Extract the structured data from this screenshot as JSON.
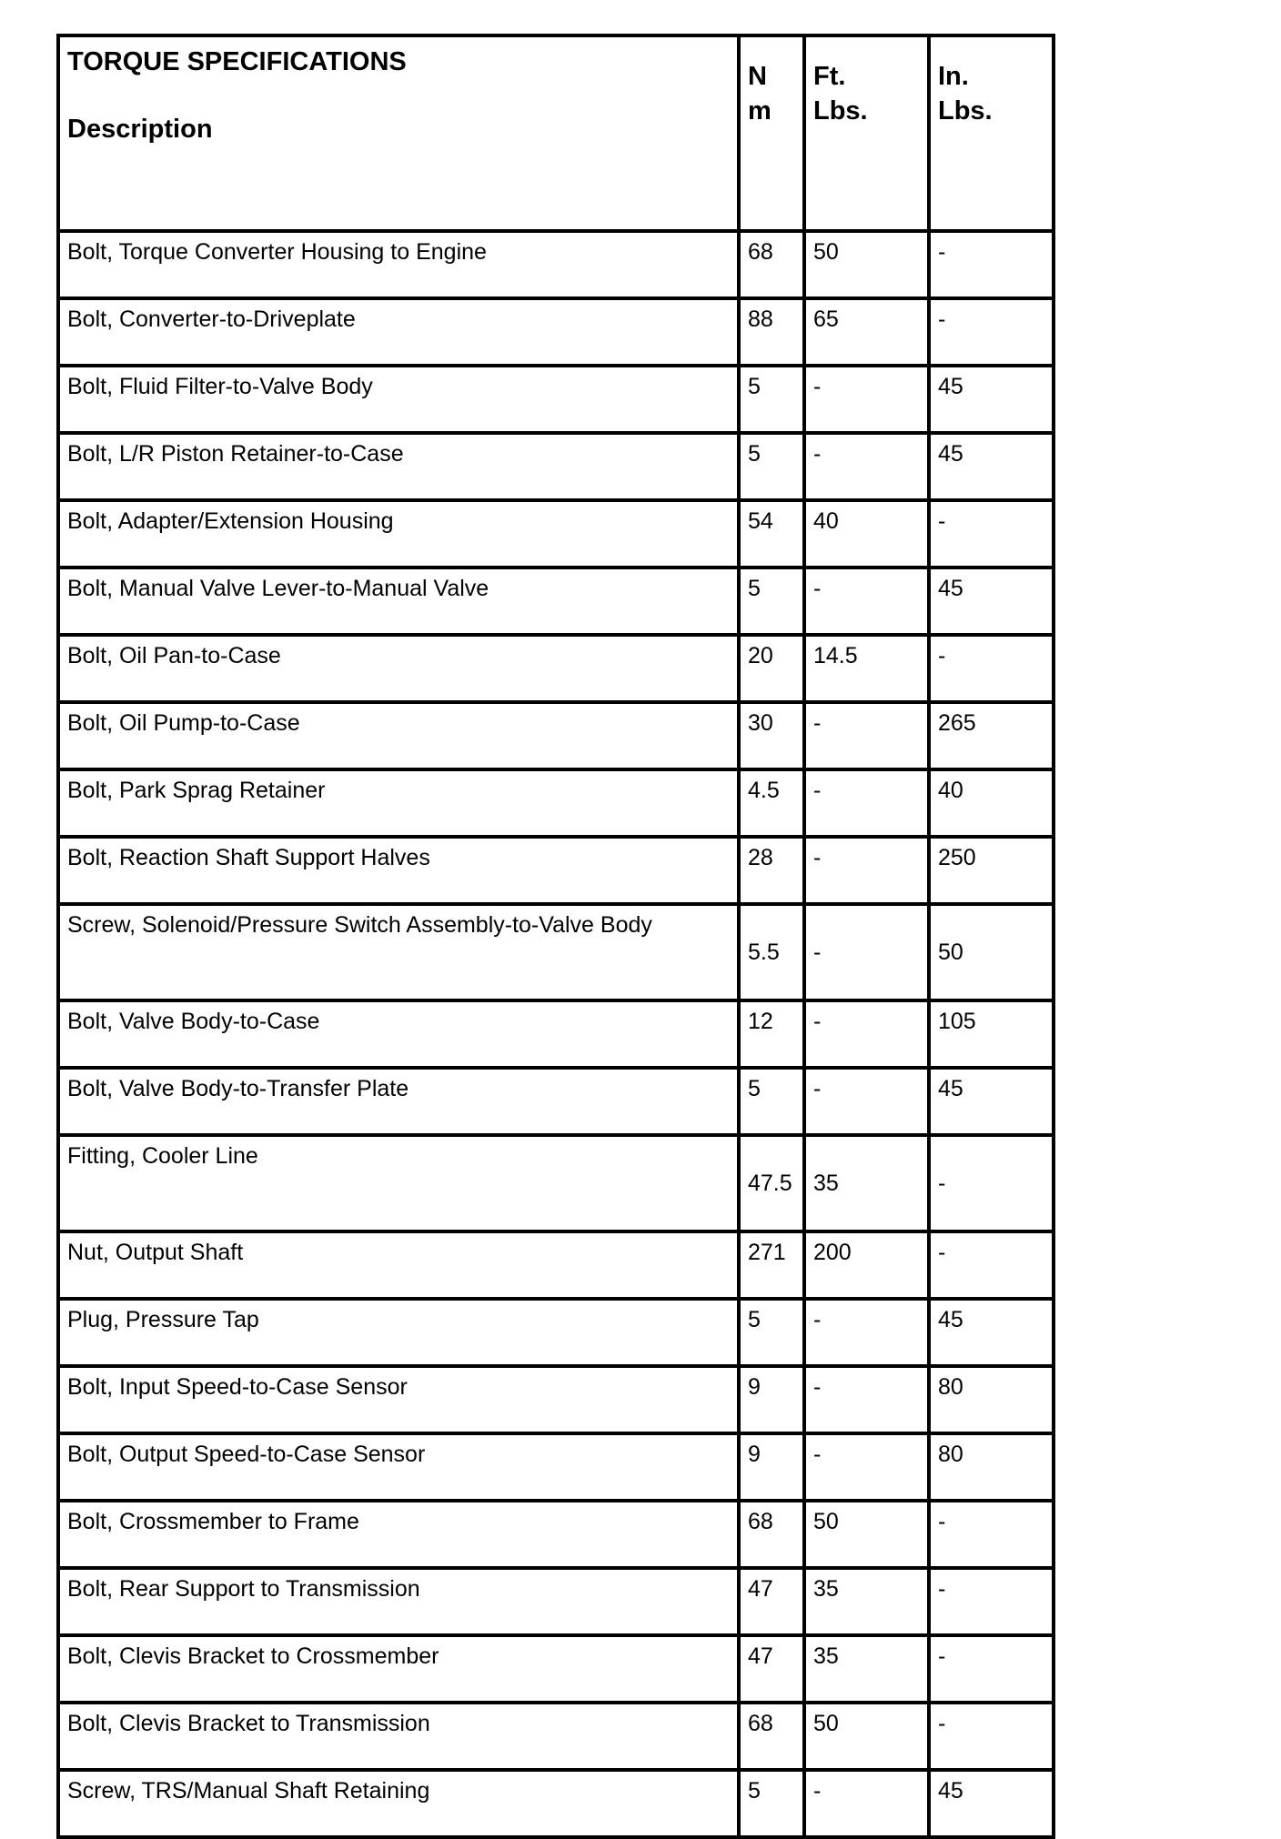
{
  "header": {
    "title": "TORQUE SPECIFICATIONS",
    "description": "Description",
    "nm": "N m",
    "ft_lbs": "Ft. Lbs.",
    "in_lbs": "In. Lbs."
  },
  "rows": [
    {
      "desc": "Bolt, Torque Converter Housing to Engine",
      "nm": "68",
      "ft": "50",
      "in": "-"
    },
    {
      "desc": "Bolt, Converter-to-Driveplate",
      "nm": "88",
      "ft": "65",
      "in": "-"
    },
    {
      "desc": "Bolt, Fluid Filter-to-Valve Body",
      "nm": "5",
      "ft": "-",
      "in": "45"
    },
    {
      "desc": "Bolt, L/R Piston Retainer-to-Case",
      "nm": "5",
      "ft": "-",
      "in": "45"
    },
    {
      "desc": "Bolt, Adapter/Extension Housing",
      "nm": "54",
      "ft": "40",
      "in": "-"
    },
    {
      "desc": "Bolt, Manual Valve Lever-to-Manual Valve",
      "nm": "5",
      "ft": "-",
      "in": "45"
    },
    {
      "desc": "Bolt, Oil Pan-to-Case",
      "nm": "20",
      "ft": "14.5",
      "in": "-"
    },
    {
      "desc": "Bolt, Oil Pump-to-Case",
      "nm": "30",
      "ft": "-",
      "in": "265"
    },
    {
      "desc": "Bolt, Park Sprag Retainer",
      "nm": "4.5",
      "ft": "-",
      "in": "40"
    },
    {
      "desc": "Bolt, Reaction Shaft Support Halves",
      "nm": "28",
      "ft": "-",
      "in": "250"
    },
    {
      "desc": "Screw, Solenoid/Pressure Switch Assembly-to-Valve Body",
      "nm": "5.5",
      "ft": "-",
      "in": "50",
      "tall": true
    },
    {
      "desc": "Bolt, Valve Body-to-Case",
      "nm": "12",
      "ft": "-",
      "in": "105"
    },
    {
      "desc": "Bolt, Valve Body-to-Transfer Plate",
      "nm": "5",
      "ft": "-",
      "in": "45"
    },
    {
      "desc": "Fitting, Cooler Line",
      "nm": "47.5",
      "ft": "35",
      "in": "-",
      "tall": true
    },
    {
      "desc": "Nut, Output Shaft",
      "nm": "271",
      "ft": "200",
      "in": "-"
    },
    {
      "desc": "Plug, Pressure Tap",
      "nm": "5",
      "ft": "-",
      "in": "45"
    },
    {
      "desc": "Bolt, Input Speed-to-Case Sensor",
      "nm": "9",
      "ft": "-",
      "in": "80"
    },
    {
      "desc": "Bolt, Output Speed-to-Case Sensor",
      "nm": "9",
      "ft": "-",
      "in": "80"
    },
    {
      "desc": "Bolt, Crossmember to Frame",
      "nm": "68",
      "ft": "50",
      "in": "-"
    },
    {
      "desc": "Bolt, Rear Support to Transmission",
      "nm": "47",
      "ft": "35",
      "in": "-"
    },
    {
      "desc": "Bolt, Clevis Bracket to Crossmember",
      "nm": "47",
      "ft": "35",
      "in": "-"
    },
    {
      "desc": "Bolt, Clevis Bracket to Transmission",
      "nm": "68",
      "ft": "50",
      "in": "-"
    },
    {
      "desc": "Screw, TRS/Manual Shaft Retaining",
      "nm": "5",
      "ft": "-",
      "in": "45"
    }
  ]
}
